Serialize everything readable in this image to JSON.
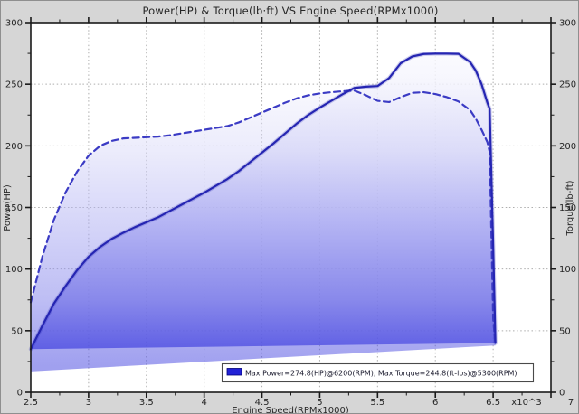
{
  "chart": {
    "title": "Power(HP) & Torque(lb·ft) VS Engine Speed(RPMx1000)",
    "x_axis_label": "Engine Speed(RPMx1000)",
    "x_multiplier_label": "x10^3",
    "left_axis_label": "Power(HP)",
    "right_axis_label": "Torque(lb-ft)",
    "legend_text": "Max Power=274.8(HP)@6200(RPM), Max Torque=244.8(ft-lbs)@5300(RPM)"
  },
  "chart_data": {
    "type": "line",
    "title": "Power(HP) & Torque(lb·ft) VS Engine Speed(RPMx1000)",
    "xlabel": "Engine Speed(RPMx1000)",
    "ylabel_left": "Power(HP)",
    "ylabel_right": "Torque(lb-ft)",
    "xlim": [
      2.5,
      7
    ],
    "ylim": [
      0,
      300
    ],
    "grid": true,
    "legend_position": "bottom-center",
    "x_tick_labels": [
      {
        "v": 2.5,
        "t": "2.5"
      },
      {
        "v": 3,
        "t": "3"
      },
      {
        "v": 3.5,
        "t": "3.5"
      },
      {
        "v": 4,
        "t": "4"
      },
      {
        "v": 4.5,
        "t": "4.5"
      },
      {
        "v": 5,
        "t": "5"
      },
      {
        "v": 5.5,
        "t": "5.5"
      },
      {
        "v": 6,
        "t": "6"
      },
      {
        "v": 6.5,
        "t": "6.5"
      },
      {
        "v": 7,
        "t": "7"
      }
    ],
    "y_tick_labels": [
      {
        "v": 0,
        "t": "0"
      },
      {
        "v": 50,
        "t": "50"
      },
      {
        "v": 100,
        "t": "100"
      },
      {
        "v": 150,
        "t": "150"
      },
      {
        "v": 200,
        "t": "200"
      },
      {
        "v": 250,
        "t": "250"
      },
      {
        "v": 300,
        "t": "300"
      }
    ],
    "x": [
      2.5,
      2.6,
      2.7,
      2.8,
      2.9,
      3.0,
      3.1,
      3.2,
      3.3,
      3.4,
      3.5,
      3.6,
      3.7,
      3.8,
      3.9,
      4.0,
      4.1,
      4.2,
      4.3,
      4.4,
      4.5,
      4.6,
      4.7,
      4.8,
      4.9,
      5.0,
      5.1,
      5.2,
      5.3,
      5.4,
      5.5,
      5.6,
      5.7,
      5.8,
      5.9,
      6.0,
      6.1,
      6.2,
      6.3,
      6.35,
      6.4,
      6.45,
      6.47,
      6.5,
      6.52
    ],
    "series": [
      {
        "name": "Power (HP)",
        "axis": "left",
        "style": "solid",
        "color": "#2525b2",
        "values": [
          35,
          54,
          72,
          86,
          99,
          110,
          118,
          124.5,
          129.5,
          134,
          138,
          142,
          147,
          152,
          157,
          162,
          167.5,
          173,
          179.5,
          187,
          194.5,
          202,
          210,
          218,
          225,
          231,
          236.5,
          242,
          247,
          248,
          248.5,
          255,
          267,
          272.5,
          274.5,
          274.8,
          274.8,
          274.6,
          268,
          261,
          250,
          235,
          230,
          120,
          40
        ]
      },
      {
        "name": "Torque (lb-ft)",
        "axis": "right",
        "style": "dashed",
        "color": "#3b3bc4",
        "values": [
          73,
          110,
          140,
          162,
          179,
          192,
          200,
          204,
          206,
          206.5,
          207,
          207.5,
          208.5,
          210,
          211.5,
          213,
          214.5,
          216,
          219,
          223,
          227,
          231,
          235,
          238.5,
          241,
          242.5,
          243.5,
          244.3,
          244.8,
          241,
          236.5,
          235.5,
          239.5,
          243,
          243.5,
          242,
          239.5,
          236,
          229,
          222,
          213,
          203,
          195,
          60,
          38
        ]
      }
    ],
    "annotations": {
      "max_power_hp": 274.8,
      "max_power_rpm": 6200,
      "max_torque_lbft": 244.8,
      "max_torque_rpm": 5300
    },
    "fill": {
      "torque_lower_left": [
        2.5,
        17
      ],
      "gradient_bottom": "#3636da",
      "gradient_top": "#ffffff",
      "power_fill_opacity": 0.82,
      "torque_fill_opacity": 0.5
    },
    "legend_swatch_color": "#2222d6"
  }
}
